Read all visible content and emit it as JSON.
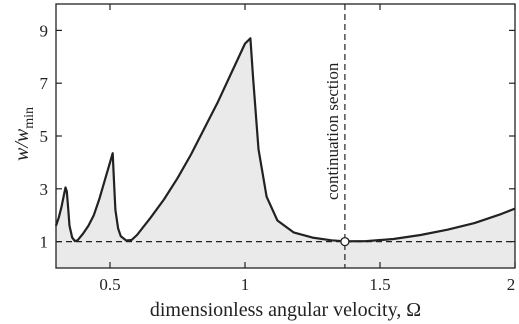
{
  "chart_data": {
    "type": "area",
    "title": "",
    "xlabel": "dimensionless angular velocity, Ω",
    "ylabel": {
      "base": "w/w",
      "sub": "min"
    },
    "xlim": [
      0.3,
      2.0
    ],
    "ylim": [
      0,
      10
    ],
    "xticks": [
      0.5,
      1,
      1.5,
      2
    ],
    "xtick_labels": [
      "0.5",
      "1",
      "1.5",
      "2"
    ],
    "yticks": [
      1,
      3,
      5,
      7,
      9
    ],
    "ytick_labels": [
      "1",
      "3",
      "5",
      "7",
      "9"
    ],
    "grid": false,
    "series": [
      {
        "x": [
          0.3,
          0.31,
          0.32,
          0.33,
          0.335,
          0.34,
          0.345,
          0.35,
          0.36,
          0.37,
          0.38,
          0.4,
          0.42,
          0.44,
          0.46,
          0.48,
          0.5,
          0.51,
          0.515,
          0.52,
          0.53,
          0.54,
          0.56,
          0.58,
          0.6,
          0.65,
          0.7,
          0.75,
          0.8,
          0.85,
          0.9,
          0.95,
          1.0,
          1.02,
          1.03,
          1.05,
          1.08,
          1.12,
          1.18,
          1.25,
          1.32,
          1.37,
          1.45,
          1.55,
          1.65,
          1.75,
          1.85,
          1.95,
          2.0
        ],
        "y": [
          1.6,
          1.9,
          2.3,
          2.8,
          3.05,
          2.9,
          2.3,
          1.6,
          1.15,
          1.02,
          1.05,
          1.3,
          1.6,
          2.0,
          2.6,
          3.3,
          4.0,
          4.35,
          3.2,
          2.2,
          1.5,
          1.2,
          1.04,
          1.06,
          1.25,
          1.9,
          2.6,
          3.4,
          4.3,
          5.3,
          6.3,
          7.4,
          8.5,
          8.7,
          7.2,
          4.5,
          2.7,
          1.8,
          1.35,
          1.15,
          1.05,
          1.01,
          1.02,
          1.1,
          1.25,
          1.45,
          1.7,
          2.05,
          2.25
        ],
        "fill": "#eaeaea",
        "line_color": "#222222"
      }
    ],
    "reference_line": {
      "y": 1,
      "style": "dashed"
    },
    "vertical_line": {
      "x": 1.37,
      "style": "dashed",
      "label": "continuation section"
    },
    "marker": {
      "x": 1.37,
      "y": 1.0,
      "shape": "open-circle"
    }
  }
}
